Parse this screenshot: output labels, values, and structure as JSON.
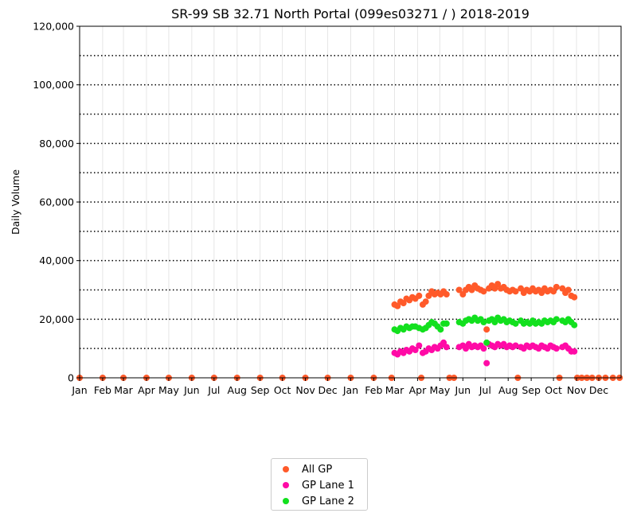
{
  "chart_data": {
    "type": "scatter",
    "title": "SR-99  SB  32.71  North Portal (099es03271 / ) 2018-2019",
    "xlabel": "",
    "ylabel": "Daily Volume",
    "xlim": [
      "2018-01-01",
      "2019-12-31"
    ],
    "ylim": [
      0,
      120000
    ],
    "y_ticks": [
      0,
      20000,
      40000,
      60000,
      80000,
      100000,
      120000
    ],
    "y_tick_labels": [
      "0",
      "20,000",
      "40,000",
      "60,000",
      "80,000",
      "100,000",
      "120,000"
    ],
    "x_tick_labels": [
      "Jan",
      "Feb",
      "Mar",
      "Apr",
      "May",
      "Jun",
      "Jul",
      "Aug",
      "Sep",
      "Oct",
      "Nov",
      "Dec",
      "Jan",
      "Feb",
      "Mar",
      "Apr",
      "May",
      "Jun",
      "Jul",
      "Aug",
      "Sep",
      "Oct",
      "Nov",
      "Dec"
    ],
    "x_tick_dates": [
      "2018-01-01",
      "2018-02-01",
      "2018-03-01",
      "2018-04-01",
      "2018-05-01",
      "2018-06-01",
      "2018-07-01",
      "2018-08-01",
      "2018-09-01",
      "2018-10-01",
      "2018-11-01",
      "2018-12-01",
      "2019-01-01",
      "2019-02-01",
      "2019-03-01",
      "2019-04-01",
      "2019-05-01",
      "2019-06-01",
      "2019-07-01",
      "2019-08-01",
      "2019-09-01",
      "2019-10-01",
      "2019-11-01",
      "2019-12-01"
    ],
    "grid": {
      "horizontal_dotted_every": 10000,
      "vertical_monthly": true
    },
    "legend": {
      "placement": "below-center"
    },
    "series": [
      {
        "name": "All GP",
        "color": "#ff5a2a",
        "points": [
          [
            "2018-01-01",
            0
          ],
          [
            "2018-02-01",
            0
          ],
          [
            "2018-03-01",
            0
          ],
          [
            "2018-04-01",
            0
          ],
          [
            "2018-05-01",
            0
          ],
          [
            "2018-06-01",
            0
          ],
          [
            "2018-07-01",
            0
          ],
          [
            "2018-08-01",
            0
          ],
          [
            "2018-09-01",
            0
          ],
          [
            "2018-10-01",
            0
          ],
          [
            "2018-11-01",
            0
          ],
          [
            "2018-12-01",
            0
          ],
          [
            "2019-01-01",
            0
          ],
          [
            "2019-02-01",
            0
          ],
          [
            "2019-02-25",
            0
          ],
          [
            "2019-03-01",
            25000
          ],
          [
            "2019-03-05",
            24500
          ],
          [
            "2019-03-09",
            26000
          ],
          [
            "2019-03-13",
            25500
          ],
          [
            "2019-03-17",
            27000
          ],
          [
            "2019-03-21",
            26500
          ],
          [
            "2019-03-25",
            27500
          ],
          [
            "2019-03-29",
            27000
          ],
          [
            "2019-04-03",
            28000
          ],
          [
            "2019-04-06",
            0
          ],
          [
            "2019-04-08",
            25000
          ],
          [
            "2019-04-12",
            26000
          ],
          [
            "2019-04-16",
            28000
          ],
          [
            "2019-04-20",
            29500
          ],
          [
            "2019-04-24",
            28500
          ],
          [
            "2019-04-28",
            29000
          ],
          [
            "2019-05-02",
            28500
          ],
          [
            "2019-05-06",
            29500
          ],
          [
            "2019-05-10",
            28500
          ],
          [
            "2019-05-14",
            0
          ],
          [
            "2019-05-20",
            0
          ],
          [
            "2019-05-27",
            30000
          ],
          [
            "2019-06-01",
            28500
          ],
          [
            "2019-06-05",
            30000
          ],
          [
            "2019-06-09",
            31000
          ],
          [
            "2019-06-13",
            30000
          ],
          [
            "2019-06-17",
            31500
          ],
          [
            "2019-06-21",
            30500
          ],
          [
            "2019-06-25",
            30000
          ],
          [
            "2019-06-29",
            29500
          ],
          [
            "2019-07-03",
            16500
          ],
          [
            "2019-07-06",
            30500
          ],
          [
            "2019-07-10",
            31500
          ],
          [
            "2019-07-14",
            30500
          ],
          [
            "2019-07-18",
            32000
          ],
          [
            "2019-07-22",
            30500
          ],
          [
            "2019-07-26",
            31000
          ],
          [
            "2019-07-30",
            30000
          ],
          [
            "2019-08-03",
            29500
          ],
          [
            "2019-08-07",
            30000
          ],
          [
            "2019-08-11",
            29500
          ],
          [
            "2019-08-14",
            0
          ],
          [
            "2019-08-18",
            30500
          ],
          [
            "2019-08-22",
            29000
          ],
          [
            "2019-08-26",
            30000
          ],
          [
            "2019-08-30",
            29500
          ],
          [
            "2019-09-03",
            30500
          ],
          [
            "2019-09-07",
            29500
          ],
          [
            "2019-09-11",
            30000
          ],
          [
            "2019-09-15",
            29000
          ],
          [
            "2019-09-19",
            30500
          ],
          [
            "2019-09-23",
            29500
          ],
          [
            "2019-09-27",
            30000
          ],
          [
            "2019-10-01",
            29500
          ],
          [
            "2019-10-05",
            31000
          ],
          [
            "2019-10-09",
            0
          ],
          [
            "2019-10-13",
            30500
          ],
          [
            "2019-10-17",
            29000
          ],
          [
            "2019-10-21",
            30000
          ],
          [
            "2019-10-25",
            28000
          ],
          [
            "2019-10-29",
            27500
          ],
          [
            "2019-11-02",
            0
          ],
          [
            "2019-11-08",
            0
          ],
          [
            "2019-11-15",
            0
          ],
          [
            "2019-11-22",
            0
          ],
          [
            "2019-12-01",
            0
          ],
          [
            "2019-12-10",
            0
          ],
          [
            "2019-12-20",
            0
          ],
          [
            "2019-12-29",
            0
          ]
        ]
      },
      {
        "name": "GP Lane 1",
        "color": "#ff0aa6",
        "points": [
          [
            "2019-03-01",
            8500
          ],
          [
            "2019-03-05",
            8000
          ],
          [
            "2019-03-09",
            9000
          ],
          [
            "2019-03-13",
            8500
          ],
          [
            "2019-03-17",
            9500
          ],
          [
            "2019-03-21",
            9000
          ],
          [
            "2019-03-25",
            10000
          ],
          [
            "2019-03-29",
            9500
          ],
          [
            "2019-04-03",
            11000
          ],
          [
            "2019-04-08",
            8500
          ],
          [
            "2019-04-12",
            9000
          ],
          [
            "2019-04-16",
            10000
          ],
          [
            "2019-04-20",
            9500
          ],
          [
            "2019-04-24",
            10500
          ],
          [
            "2019-04-28",
            10000
          ],
          [
            "2019-05-02",
            11000
          ],
          [
            "2019-05-06",
            12000
          ],
          [
            "2019-05-10",
            10500
          ],
          [
            "2019-05-27",
            10500
          ],
          [
            "2019-06-01",
            11000
          ],
          [
            "2019-06-05",
            10000
          ],
          [
            "2019-06-09",
            11500
          ],
          [
            "2019-06-13",
            10500
          ],
          [
            "2019-06-17",
            11000
          ],
          [
            "2019-06-21",
            10500
          ],
          [
            "2019-06-25",
            11000
          ],
          [
            "2019-06-29",
            10000
          ],
          [
            "2019-07-03",
            5000
          ],
          [
            "2019-07-06",
            11500
          ],
          [
            "2019-07-10",
            11000
          ],
          [
            "2019-07-14",
            10500
          ],
          [
            "2019-07-18",
            11500
          ],
          [
            "2019-07-22",
            11000
          ],
          [
            "2019-07-26",
            11500
          ],
          [
            "2019-07-30",
            10500
          ],
          [
            "2019-08-03",
            11000
          ],
          [
            "2019-08-07",
            10500
          ],
          [
            "2019-08-11",
            11000
          ],
          [
            "2019-08-18",
            10500
          ],
          [
            "2019-08-22",
            10000
          ],
          [
            "2019-08-26",
            11000
          ],
          [
            "2019-08-30",
            10500
          ],
          [
            "2019-09-03",
            11000
          ],
          [
            "2019-09-07",
            10500
          ],
          [
            "2019-09-11",
            10000
          ],
          [
            "2019-09-15",
            11000
          ],
          [
            "2019-09-19",
            10500
          ],
          [
            "2019-09-23",
            10000
          ],
          [
            "2019-09-27",
            11000
          ],
          [
            "2019-10-01",
            10500
          ],
          [
            "2019-10-05",
            10000
          ],
          [
            "2019-10-13",
            10500
          ],
          [
            "2019-10-17",
            11000
          ],
          [
            "2019-10-21",
            10000
          ],
          [
            "2019-10-25",
            9000
          ],
          [
            "2019-10-29",
            9000
          ]
        ]
      },
      {
        "name": "GP Lane 2",
        "color": "#12e01e",
        "points": [
          [
            "2019-03-01",
            16500
          ],
          [
            "2019-03-05",
            16000
          ],
          [
            "2019-03-09",
            17000
          ],
          [
            "2019-03-13",
            16500
          ],
          [
            "2019-03-17",
            17500
          ],
          [
            "2019-03-21",
            17000
          ],
          [
            "2019-03-25",
            17500
          ],
          [
            "2019-03-29",
            17500
          ],
          [
            "2019-04-03",
            17000
          ],
          [
            "2019-04-08",
            16500
          ],
          [
            "2019-04-12",
            17000
          ],
          [
            "2019-04-16",
            18000
          ],
          [
            "2019-04-20",
            19000
          ],
          [
            "2019-04-24",
            18500
          ],
          [
            "2019-04-28",
            17500
          ],
          [
            "2019-05-02",
            16500
          ],
          [
            "2019-05-06",
            18500
          ],
          [
            "2019-05-10",
            18500
          ],
          [
            "2019-05-27",
            19000
          ],
          [
            "2019-06-01",
            18500
          ],
          [
            "2019-06-05",
            19500
          ],
          [
            "2019-06-09",
            20000
          ],
          [
            "2019-06-13",
            19500
          ],
          [
            "2019-06-17",
            20500
          ],
          [
            "2019-06-21",
            19500
          ],
          [
            "2019-06-25",
            20000
          ],
          [
            "2019-06-29",
            19000
          ],
          [
            "2019-07-03",
            12000
          ],
          [
            "2019-07-06",
            19500
          ],
          [
            "2019-07-10",
            20000
          ],
          [
            "2019-07-14",
            19000
          ],
          [
            "2019-07-18",
            20500
          ],
          [
            "2019-07-22",
            19500
          ],
          [
            "2019-07-26",
            20000
          ],
          [
            "2019-07-30",
            19000
          ],
          [
            "2019-08-03",
            19500
          ],
          [
            "2019-08-07",
            19000
          ],
          [
            "2019-08-11",
            18500
          ],
          [
            "2019-08-18",
            19500
          ],
          [
            "2019-08-22",
            18500
          ],
          [
            "2019-08-26",
            19000
          ],
          [
            "2019-08-30",
            18500
          ],
          [
            "2019-09-03",
            19500
          ],
          [
            "2019-09-07",
            18500
          ],
          [
            "2019-09-11",
            19000
          ],
          [
            "2019-09-15",
            18500
          ],
          [
            "2019-09-19",
            19500
          ],
          [
            "2019-09-23",
            19000
          ],
          [
            "2019-09-27",
            19500
          ],
          [
            "2019-10-01",
            19000
          ],
          [
            "2019-10-05",
            20000
          ],
          [
            "2019-10-13",
            19500
          ],
          [
            "2019-10-17",
            19000
          ],
          [
            "2019-10-21",
            20000
          ],
          [
            "2019-10-25",
            19000
          ],
          [
            "2019-10-29",
            18000
          ]
        ]
      }
    ]
  }
}
